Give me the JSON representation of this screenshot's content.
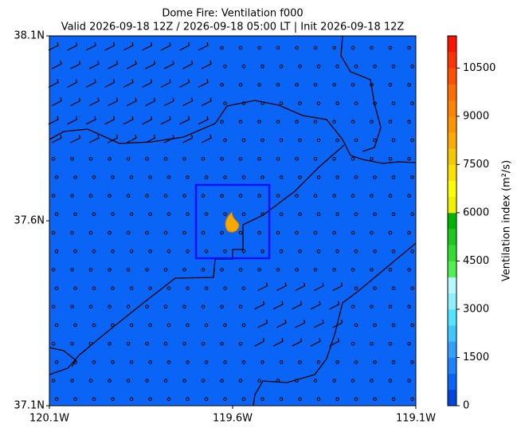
{
  "chart_data": {
    "type": "map",
    "title": "Dome Fire: Ventilation f000",
    "subtitle": "Valid 2026-09-18 12Z / 2026-09-18 05:00 LT | Init 2026-09-18 12Z",
    "xlim": [
      -120.1,
      -119.1
    ],
    "xticks": [
      {
        "value": -120.1,
        "label": "120.1W"
      },
      {
        "value": -119.6,
        "label": "119.6W"
      },
      {
        "value": -119.1,
        "label": "119.1W"
      }
    ],
    "ylim": [
      37.1,
      38.1
    ],
    "yticks": [
      {
        "value": 37.1,
        "label": "37.1N"
      },
      {
        "value": 37.6,
        "label": "37.6N"
      },
      {
        "value": 38.1,
        "label": "38.1N"
      }
    ],
    "background_color": "#0a64f5",
    "colorbar": {
      "label": "Ventilation index (m²/s)",
      "lim": [
        0,
        11500
      ],
      "ticks": [
        0,
        1500,
        3000,
        4500,
        6000,
        7500,
        9000,
        10500
      ],
      "colors": [
        "#0046dc",
        "#0a64f5",
        "#1e82ff",
        "#32a0ff",
        "#3cc8ff",
        "#50e6ff",
        "#8cf0ff",
        "#b4faff",
        "#50f050",
        "#32dc32",
        "#1ec81e",
        "#00b400",
        "#f0f000",
        "#ffff00",
        "#fae100",
        "#f5c800",
        "#ffaa00",
        "#ff9600",
        "#ff8200",
        "#ff6e00",
        "#ff5000",
        "#ff3200",
        "#ff1400"
      ]
    }
  }
}
